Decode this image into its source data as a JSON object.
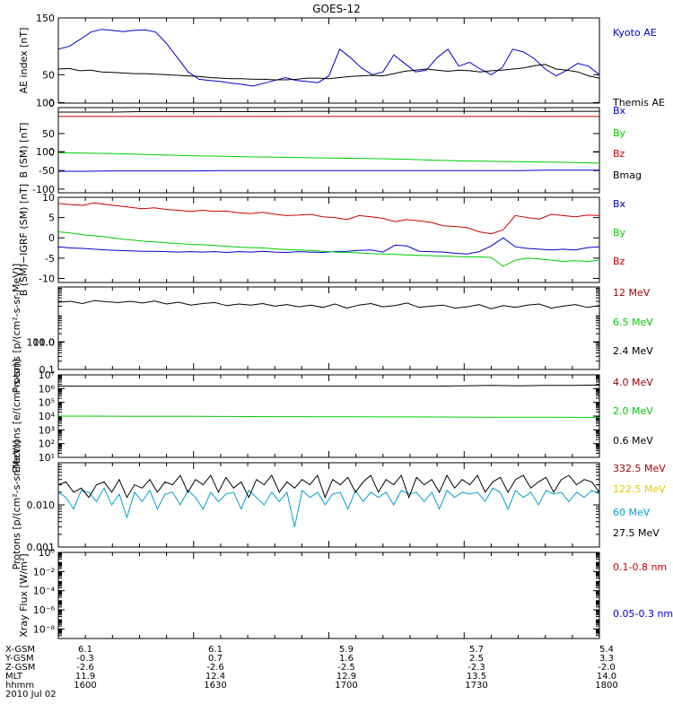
{
  "title": "GOES-12",
  "footer": {
    "rows": [
      {
        "label": "X-GSM",
        "values": [
          "6.1",
          "6.1",
          "5.9",
          "5.7",
          "5.4"
        ]
      },
      {
        "label": "Y-GSM",
        "values": [
          "-0.3",
          "0.7",
          "1.6",
          "2.5",
          "3.3"
        ]
      },
      {
        "label": "Z-GSM",
        "values": [
          "-2.6",
          "-2.6",
          "-2.5",
          "-2.3",
          "-2.0"
        ]
      },
      {
        "label": "MLT",
        "values": [
          "11.9",
          "12.4",
          "12.9",
          "13.5",
          "14.0"
        ]
      },
      {
        "label": "hhmm",
        "values": [
          "1600",
          "1630",
          "1700",
          "1730",
          "1800"
        ]
      }
    ],
    "date": "2010 Jul 02"
  },
  "colors": {
    "black": "#000000",
    "blue": "#0000cc",
    "green": "#00cc00",
    "red": "#cc0000",
    "darkred": "#990000",
    "yellow": "#e6c800",
    "cyan": "#00a0d0"
  },
  "chart_data": [
    {
      "type": "line",
      "ylabel": "AE index [nT]",
      "ylim": [
        0,
        150
      ],
      "yticks": [
        "0",
        "50",
        "100",
        "150"
      ],
      "xlim": [
        1600,
        1800
      ],
      "series": [
        {
          "name": "Kyoto AE",
          "color": "#0000cc",
          "y": [
            95,
            100,
            112,
            125,
            130,
            128,
            126,
            128,
            129,
            125,
            105,
            80,
            55,
            42,
            40,
            38,
            35,
            33,
            30,
            35,
            40,
            45,
            40,
            38,
            36,
            48,
            95,
            80,
            62,
            50,
            55,
            85,
            70,
            55,
            58,
            80,
            95,
            65,
            72,
            60,
            50,
            62,
            95,
            90,
            78,
            60,
            48,
            58,
            70,
            65,
            50
          ]
        },
        {
          "name": "Themis AE",
          "color": "#000000",
          "y": [
            60,
            61,
            57,
            58,
            55,
            54,
            53,
            52,
            52,
            51,
            50,
            49,
            48,
            47,
            45,
            44,
            43,
            43,
            42,
            42,
            41,
            41,
            42,
            44,
            44,
            43,
            45,
            47,
            48,
            49,
            48,
            52,
            56,
            58,
            60,
            58,
            56,
            58,
            57,
            55,
            57,
            58,
            60,
            62,
            66,
            68,
            60,
            58,
            55,
            48,
            44
          ]
        }
      ]
    },
    {
      "type": "line",
      "ylabel": "B (SM) [nT]",
      "ylim": [
        -110,
        120
      ],
      "yticks": [
        "-100",
        "-50",
        "0",
        "50",
        "100"
      ],
      "xlim": [
        1600,
        1800
      ],
      "series": [
        {
          "name": "Bx",
          "color": "#0000cc",
          "y": [
            -52,
            -52,
            -51,
            -51,
            -51,
            -51,
            -50,
            -50,
            -50,
            -50,
            -50,
            -50,
            -50,
            -50,
            -50,
            -50,
            -50,
            -50,
            -49,
            -49,
            -49
          ]
        },
        {
          "name": "By",
          "color": "#00cc00",
          "y": [
            -2,
            -3,
            -4,
            -6,
            -8,
            -10,
            -11,
            -13,
            -14,
            -15,
            -16,
            -17,
            -18,
            -20,
            -22,
            -24,
            -25,
            -26,
            -27,
            -28,
            -30
          ]
        },
        {
          "name": "Bz",
          "color": "#cc0000",
          "y": [
            96,
            96,
            96,
            96,
            96,
            96,
            96,
            96,
            96,
            96,
            96,
            96,
            96,
            96,
            96,
            96,
            96,
            96,
            96,
            96,
            96
          ]
        },
        {
          "name": "Bmag",
          "color": "#000000",
          "y": [
            108,
            108,
            108,
            109,
            109,
            109,
            109,
            109,
            109,
            110,
            110,
            110,
            110,
            110,
            110,
            110,
            110,
            110,
            109,
            110,
            110
          ]
        }
      ]
    },
    {
      "type": "line",
      "ylabel": "B (SM)−IGRF (SM) [nT]",
      "ylim": [
        -11,
        10
      ],
      "yticks": [
        "-10",
        "-5",
        "0",
        "5",
        "10"
      ],
      "xlim": [
        1600,
        1800
      ],
      "series": [
        {
          "name": "Bx",
          "color": "#0000cc",
          "y": [
            -2.2,
            -2.5,
            -2.6,
            -2.8,
            -3.0,
            -3.1,
            -3.2,
            -3.3,
            -3.3,
            -3.4,
            -3.5,
            -3.4,
            -3.5,
            -3.4,
            -3.6,
            -3.4,
            -3.5,
            -3.3,
            -3.5,
            -3.6,
            -3.4,
            -3.5,
            -3.6,
            -3.4,
            -3.3,
            -3.1,
            -3.0,
            -3.5,
            -1.8,
            -2.0,
            -3.3,
            -3.4,
            -3.5,
            -3.8,
            -4.0,
            -3.4,
            -2.0,
            0.0,
            -2.2,
            -2.6,
            -2.8,
            -3.0,
            -2.8,
            -3.0,
            -2.4,
            -2.2
          ]
        },
        {
          "name": "By",
          "color": "#00cc00",
          "y": [
            1.5,
            1.2,
            0.8,
            0.5,
            0.2,
            -0.2,
            -0.5,
            -0.8,
            -1.0,
            -1.2,
            -1.4,
            -1.6,
            -1.7,
            -1.9,
            -2.1,
            -2.3,
            -2.4,
            -2.5,
            -2.7,
            -2.9,
            -3.0,
            -3.1,
            -3.3,
            -3.5,
            -3.6,
            -3.7,
            -3.9,
            -4.0,
            -4.1,
            -4.2,
            -4.3,
            -4.4,
            -4.5,
            -4.6,
            -4.7,
            -4.7,
            -4.8,
            -7.0,
            -5.5,
            -5.0,
            -5.2,
            -5.5,
            -5.8,
            -5.6,
            -5.8,
            -5.5
          ]
        },
        {
          "name": "Bz",
          "color": "#cc0000",
          "y": [
            8.5,
            8.2,
            8.0,
            8.6,
            8.2,
            7.9,
            7.5,
            7.2,
            7.4,
            7.0,
            6.8,
            6.5,
            6.8,
            6.5,
            6.6,
            6.2,
            6.0,
            6.3,
            5.8,
            5.5,
            5.6,
            5.8,
            5.2,
            5.0,
            4.5,
            5.5,
            5.2,
            4.8,
            4.0,
            4.5,
            4.2,
            3.8,
            3.0,
            2.8,
            2.5,
            1.5,
            1.0,
            2.0,
            5.5,
            5.0,
            4.6,
            5.8,
            5.5,
            5.2,
            5.6,
            5.5
          ]
        }
      ]
    },
    {
      "type": "line",
      "scale": "log",
      "ylabel": "Protons [p/(cm²-s-sr-MeV)]",
      "ylim": [
        0.1,
        100
      ],
      "yticks": [
        "0.1",
        "1.0",
        "10.0",
        "100.0"
      ],
      "xlim": [
        1600,
        1800
      ],
      "series": [
        {
          "name": "12 MeV",
          "color": "#990000",
          "y": []
        },
        {
          "name": "6.5 MeV",
          "color": "#00cc00",
          "y": []
        },
        {
          "name": "2.4 MeV",
          "color": "#000000",
          "y": [
            28,
            30,
            25,
            32,
            29,
            27,
            30,
            26,
            31,
            24,
            28,
            22,
            25,
            27,
            21,
            24,
            22,
            25,
            20,
            23,
            19,
            22,
            18,
            24,
            17,
            22,
            25,
            19,
            21,
            26,
            18,
            20,
            22,
            17,
            19,
            23,
            16,
            21,
            18,
            22,
            24,
            17,
            20,
            23,
            18,
            21
          ]
        }
      ]
    },
    {
      "type": "line",
      "scale": "log",
      "ylabel": "Electrons [e/(cm²-s-sr)]",
      "ylim": [
        10,
        10000000
      ],
      "yticks": [
        "10¹",
        "10²",
        "10³",
        "10⁴",
        "10⁵",
        "10⁶",
        "10⁷"
      ],
      "xlim": [
        1600,
        1800
      ],
      "series": [
        {
          "name": "4.0 MeV",
          "color": "#990000",
          "y": []
        },
        {
          "name": "2.0 MeV",
          "color": "#00cc00",
          "y": [
            10000,
            10000,
            9800,
            9700,
            9600,
            9500,
            9400,
            9300,
            9200,
            9100,
            9000,
            8900,
            8800,
            8700,
            8600,
            8500,
            8400,
            8300,
            8200,
            8100,
            8000
          ]
        },
        {
          "name": "0.6 MeV",
          "color": "#000000",
          "y": [
            1500000,
            1500000,
            1500000,
            1500000,
            1500000,
            1500000,
            1500000,
            1500000,
            1500000,
            1500000,
            1500000,
            1500000,
            1500000,
            1500000,
            1500000,
            1600000,
            1700000,
            1600000,
            1700000,
            1700000,
            1800000
          ]
        }
      ]
    },
    {
      "type": "line",
      "scale": "log",
      "ylabel": "Protons [p/(cm²-s-sr-MeV)]",
      "ylim": [
        0.001,
        0.1
      ],
      "yticks": [
        "0.001",
        "0.010"
      ],
      "xlim": [
        1600,
        1800
      ],
      "series": [
        {
          "name": "332.5 MeV",
          "color": "#990000",
          "y": []
        },
        {
          "name": "122.5 MeV",
          "color": "#e6c800",
          "y": []
        },
        {
          "name": "60 MeV",
          "color": "#00a0d0",
          "y": [
            0.02,
            0.015,
            0.008,
            0.022,
            0.02,
            0.012,
            0.025,
            0.01,
            0.018,
            0.005,
            0.02,
            0.012,
            0.022,
            0.008,
            0.018,
            0.02,
            0.01,
            0.022,
            0.015,
            0.008,
            0.02,
            0.012,
            0.018,
            0.02,
            0.008,
            0.022,
            0.015,
            0.01,
            0.02,
            0.012,
            0.02,
            0.003,
            0.022,
            0.015,
            0.02,
            0.01,
            0.018,
            0.02,
            0.008,
            0.022,
            0.012,
            0.02,
            0.015,
            0.02,
            0.01,
            0.022,
            0.018,
            0.02,
            0.012,
            0.02,
            0.008,
            0.022,
            0.015,
            0.02,
            0.018,
            0.02,
            0.012,
            0.025,
            0.02,
            0.008,
            0.022,
            0.015,
            0.02,
            0.01,
            0.022,
            0.018,
            0.02,
            0.012,
            0.02,
            0.015,
            0.022,
            0.018
          ]
        },
        {
          "name": "27.5 MeV",
          "color": "#000000",
          "y": [
            0.03,
            0.035,
            0.02,
            0.025,
            0.015,
            0.03,
            0.035,
            0.02,
            0.04,
            0.015,
            0.03,
            0.025,
            0.04,
            0.02,
            0.035,
            0.03,
            0.05,
            0.02,
            0.04,
            0.03,
            0.05,
            0.02,
            0.045,
            0.025,
            0.035,
            0.015,
            0.04,
            0.03,
            0.05,
            0.02,
            0.035,
            0.025,
            0.04,
            0.03,
            0.05,
            0.015,
            0.04,
            0.03,
            0.045,
            0.02,
            0.035,
            0.05,
            0.02,
            0.04,
            0.03,
            0.05,
            0.015,
            0.045,
            0.03,
            0.04,
            0.02,
            0.05,
            0.025,
            0.04,
            0.03,
            0.05,
            0.02,
            0.035,
            0.045,
            0.02,
            0.04,
            0.05,
            0.025,
            0.035,
            0.045,
            0.02,
            0.04,
            0.05,
            0.03,
            0.04,
            0.035,
            0.02
          ]
        }
      ]
    },
    {
      "type": "line",
      "scale": "log",
      "ylabel": "Xray Flux [W/m²]",
      "ylim": [
        1e-09,
        1
      ],
      "yticks": [
        "10⁻⁸",
        "10⁻⁶",
        "10⁻⁴",
        "10⁻²",
        "10⁰"
      ],
      "xlim": [
        1600,
        1800
      ],
      "series": [
        {
          "name": "0.1-0.8 nm",
          "color": "#cc0000",
          "y": []
        },
        {
          "name": "0.05-0.3 nm",
          "color": "#0000cc",
          "y": []
        }
      ]
    }
  ]
}
